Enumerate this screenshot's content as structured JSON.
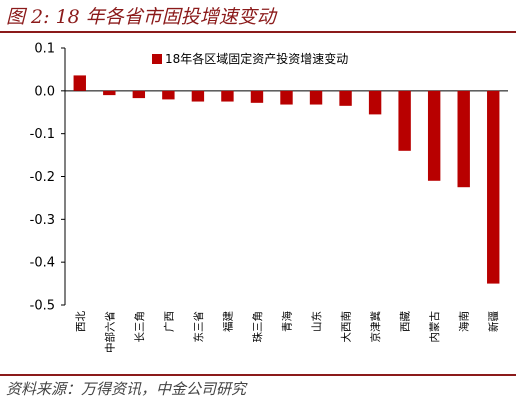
{
  "figure": {
    "title": "图 2: 18 年各省市固投增速变动",
    "source": "资料来源：万得资讯，中金公司研究"
  },
  "colors": {
    "bar": "#b80000",
    "accent": "#8b1a1a"
  },
  "chart_data": {
    "type": "bar",
    "title": "",
    "xlabel": "",
    "ylabel": "",
    "ylim": [
      -0.5,
      0.1
    ],
    "yticks": [
      "0.1",
      "0.0",
      "-0.1",
      "-0.2",
      "-0.3",
      "-0.4",
      "-0.5"
    ],
    "grid": false,
    "legend_position": "top",
    "categories": [
      "西北",
      "中部六省",
      "长三角",
      "广西",
      "东三省",
      "福建",
      "珠三角",
      "青海",
      "山东",
      "大西南",
      "京津冀",
      "西藏",
      "内蒙古",
      "海南",
      "新疆"
    ],
    "series": [
      {
        "name": "18年各区域固定资产投资增速变动",
        "values": [
          0.036,
          -0.01,
          -0.017,
          -0.02,
          -0.025,
          -0.025,
          -0.028,
          -0.032,
          -0.032,
          -0.035,
          -0.055,
          -0.14,
          -0.21,
          -0.225,
          -0.45
        ]
      }
    ]
  }
}
